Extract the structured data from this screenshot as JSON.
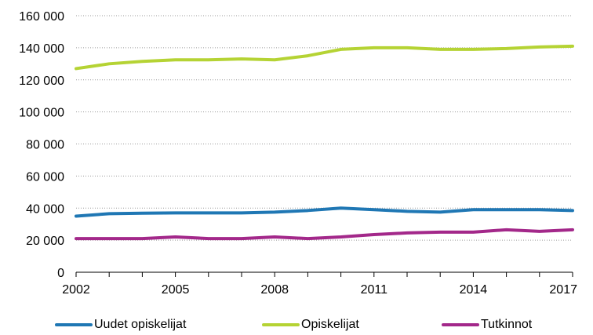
{
  "chart_data": {
    "type": "line",
    "x": [
      2002,
      2003,
      2004,
      2005,
      2006,
      2007,
      2008,
      2009,
      2010,
      2011,
      2012,
      2013,
      2014,
      2015,
      2016,
      2017
    ],
    "x_tick_labels": [
      "2002",
      "2005",
      "2008",
      "2011",
      "2014",
      "2017"
    ],
    "y_tick_labels": [
      "0",
      "20 000",
      "40 000",
      "60 000",
      "80 000",
      "100 000",
      "120 000",
      "140 000",
      "160 000"
    ],
    "xlim": [
      2002,
      2017
    ],
    "ylim": [
      0,
      160000
    ],
    "grid": "horizontal dotted",
    "legend_position": "bottom",
    "series": [
      {
        "name": "Uudet opiskelijat",
        "color": "#1f77b4",
        "values": [
          35000,
          36500,
          36800,
          37000,
          37000,
          37000,
          37500,
          38500,
          40000,
          39000,
          38000,
          37500,
          39000,
          39000,
          39000,
          38500
        ]
      },
      {
        "name": "Opiskelijat",
        "color": "#b5d334",
        "values": [
          127000,
          130000,
          131500,
          132500,
          132500,
          133000,
          132500,
          135000,
          139000,
          140000,
          140000,
          139000,
          139000,
          139500,
          140500,
          141000
        ]
      },
      {
        "name": "Tutkinnot",
        "color": "#a3288a",
        "values": [
          21000,
          21000,
          21000,
          22000,
          21000,
          21000,
          22000,
          21000,
          22000,
          23500,
          24500,
          25000,
          25000,
          26500,
          25500,
          26500
        ]
      }
    ]
  }
}
